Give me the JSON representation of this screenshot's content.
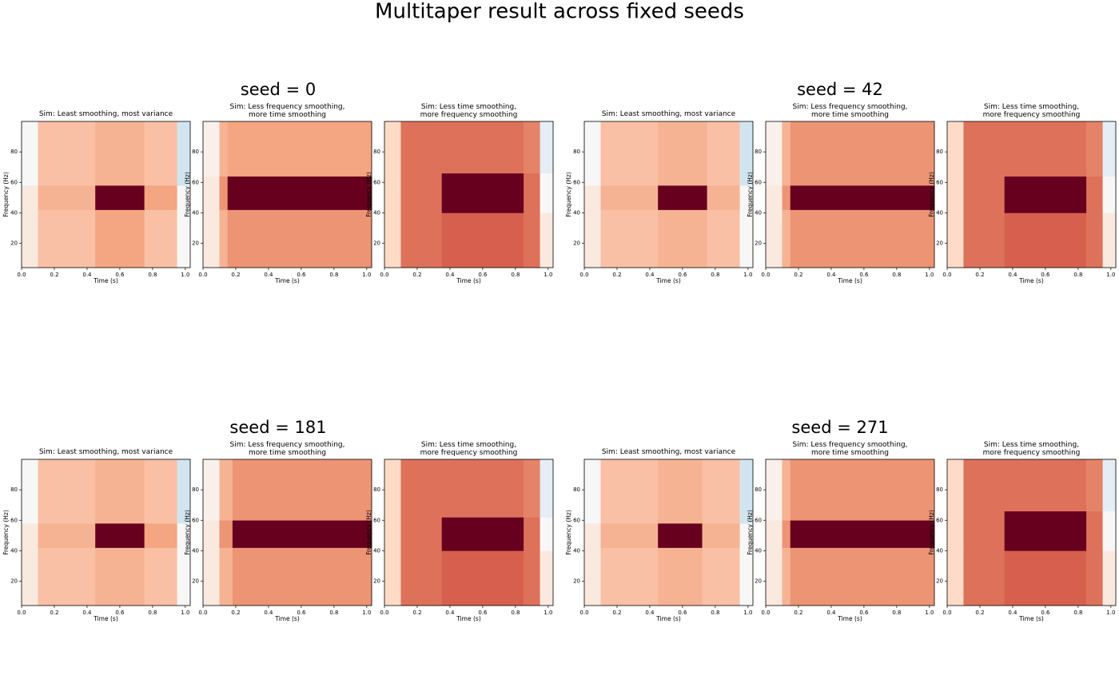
{
  "title": "Multitaper result across fixed seeds",
  "group_titles": [
    "seed = 0",
    "seed = 42",
    "seed = 181",
    "seed = 271"
  ],
  "colormap": [
    "#053061",
    "#2166ac",
    "#4393c3",
    "#92c5de",
    "#d1e5f0",
    "#f7f7f7",
    "#fddbc7",
    "#f4a582",
    "#d6604d",
    "#b2182b",
    "#67001f"
  ],
  "chart_data": [
    {
      "type": "heatmap",
      "title": "Sim: Least smoothing, most variance",
      "xlabel": "Time (s)",
      "ylabel": "Frequency (Hz)",
      "xbins": [
        0,
        0.1,
        0.45,
        0.75,
        0.95,
        1.03
      ],
      "ybins": [
        4,
        42,
        58,
        100
      ],
      "values": [
        [
          0.1,
          0.3,
          0.4,
          0.3,
          0
        ],
        [
          0.1,
          0.35,
          1,
          0.4,
          0
        ],
        [
          0,
          0.3,
          0.35,
          0.3,
          -0.2
        ]
      ],
      "clim": [
        -1,
        1
      ],
      "xlim": [
        0,
        1.03
      ],
      "ylim": [
        4,
        100
      ],
      "xticks": [
        {
          "value": 0,
          "label": "0.0"
        },
        0.2,
        0.4,
        0.6,
        0.8,
        {
          "value": 1,
          "label": "1.0"
        }
      ],
      "yticks": [
        20,
        40,
        60,
        80
      ]
    },
    {
      "type": "heatmap",
      "title": "Sim: Less frequency smoothing,\nmore time smoothing",
      "xlabel": "Time (s)",
      "ylabel": "Frequency (Hz)",
      "xbins": [
        0,
        0.1,
        0.15,
        1.03
      ],
      "ybins": [
        4,
        42,
        64,
        100
      ],
      "values": [
        [
          0.1,
          0.35,
          0.45
        ],
        [
          0.1,
          0.45,
          1
        ],
        [
          0.05,
          0.35,
          0.4
        ]
      ],
      "clim": [
        -1,
        1
      ],
      "xlim": [
        0,
        1.03
      ],
      "ylim": [
        4,
        100
      ],
      "xticks": [
        {
          "value": 0,
          "label": "0.0"
        },
        0.2,
        0.4,
        0.6,
        0.8,
        {
          "value": 1,
          "label": "1.0"
        }
      ],
      "yticks": [
        20,
        40,
        60,
        80
      ]
    },
    {
      "type": "heatmap",
      "title": "Sim: Less time smoothing,\nmore frequency smoothing",
      "xlabel": "Time (s)",
      "ylabel": "Frequency (Hz)",
      "xbins": [
        0,
        0.1,
        0.35,
        0.85,
        0.95,
        1.03
      ],
      "ybins": [
        4,
        40,
        66,
        100
      ],
      "values": [
        [
          0.2,
          0.55,
          0.6,
          0.55,
          0.1
        ],
        [
          0.2,
          0.55,
          1,
          0.55,
          0
        ],
        [
          0.2,
          0.55,
          0.55,
          0.5,
          -0.1
        ]
      ],
      "clim": [
        -1,
        1
      ],
      "xlim": [
        0,
        1.03
      ],
      "ylim": [
        4,
        100
      ],
      "xticks": [
        {
          "value": 0,
          "label": "0.0"
        },
        0.2,
        0.4,
        0.6,
        0.8,
        {
          "value": 1,
          "label": "1.0"
        }
      ],
      "yticks": [
        20,
        40,
        60,
        80
      ]
    },
    {
      "type": "heatmap",
      "title": "Sim: Least smoothing, most variance",
      "xlabel": "Time (s)",
      "ylabel": "Frequency (Hz)",
      "xbins": [
        0,
        0.1,
        0.45,
        0.75,
        0.95,
        1.03
      ],
      "ybins": [
        4,
        42,
        58,
        100
      ],
      "values": [
        [
          0.1,
          0.3,
          0.35,
          0.3,
          0
        ],
        [
          0.1,
          0.35,
          1,
          0.35,
          0
        ],
        [
          0,
          0.3,
          0.35,
          0.3,
          -0.2
        ]
      ],
      "clim": [
        -1,
        1
      ],
      "xlim": [
        0,
        1.03
      ],
      "ylim": [
        4,
        100
      ],
      "xticks": [
        {
          "value": 0,
          "label": "0.0"
        },
        0.2,
        0.4,
        0.6,
        0.8,
        {
          "value": 1,
          "label": "1.0"
        }
      ],
      "yticks": [
        20,
        40,
        60,
        80
      ]
    },
    {
      "type": "heatmap",
      "title": "Sim: Less frequency smoothing,\nmore time smoothing",
      "xlabel": "Time (s)",
      "ylabel": "Frequency (Hz)",
      "xbins": [
        0,
        0.1,
        0.15,
        1.03
      ],
      "ybins": [
        4,
        42,
        58,
        100
      ],
      "values": [
        [
          0.1,
          0.35,
          0.45
        ],
        [
          0.1,
          0.45,
          1
        ],
        [
          0.05,
          0.35,
          0.45
        ]
      ],
      "clim": [
        -1,
        1
      ],
      "xlim": [
        0,
        1.03
      ],
      "ylim": [
        4,
        100
      ],
      "xticks": [
        {
          "value": 0,
          "label": "0.0"
        },
        0.2,
        0.4,
        0.6,
        0.8,
        {
          "value": 1,
          "label": "1.0"
        }
      ],
      "yticks": [
        20,
        40,
        60,
        80
      ]
    },
    {
      "type": "heatmap",
      "title": "Sim: Less time smoothing,\nmore frequency smoothing",
      "xlabel": "Time (s)",
      "ylabel": "Frequency (Hz)",
      "xbins": [
        0,
        0.1,
        0.35,
        0.85,
        0.95,
        1.03
      ],
      "ybins": [
        4,
        40,
        64,
        100
      ],
      "values": [
        [
          0.2,
          0.55,
          0.6,
          0.55,
          0.1
        ],
        [
          0.2,
          0.55,
          1,
          0.55,
          0
        ],
        [
          0.2,
          0.55,
          0.55,
          0.5,
          -0.1
        ]
      ],
      "clim": [
        -1,
        1
      ],
      "xlim": [
        0,
        1.03
      ],
      "ylim": [
        4,
        100
      ],
      "xticks": [
        {
          "value": 0,
          "label": "0.0"
        },
        0.2,
        0.4,
        0.6,
        0.8,
        {
          "value": 1,
          "label": "1.0"
        }
      ],
      "yticks": [
        20,
        40,
        60,
        80
      ]
    },
    {
      "type": "heatmap",
      "title": "Sim: Least smoothing, most variance",
      "xlabel": "Time (s)",
      "ylabel": "Frequency (Hz)",
      "xbins": [
        0,
        0.1,
        0.45,
        0.75,
        0.95,
        1.03
      ],
      "ybins": [
        4,
        42,
        58,
        100
      ],
      "values": [
        [
          0.1,
          0.3,
          0.35,
          0.3,
          0
        ],
        [
          0.1,
          0.35,
          1,
          0.4,
          0
        ],
        [
          0,
          0.3,
          0.35,
          0.3,
          -0.2
        ]
      ],
      "clim": [
        -1,
        1
      ],
      "xlim": [
        0,
        1.03
      ],
      "ylim": [
        4,
        100
      ],
      "xticks": [
        {
          "value": 0,
          "label": "0.0"
        },
        0.2,
        0.4,
        0.6,
        0.8,
        {
          "value": 1,
          "label": "1.0"
        }
      ],
      "yticks": [
        20,
        40,
        60,
        80
      ]
    },
    {
      "type": "heatmap",
      "title": "Sim: Less frequency smoothing,\nmore time smoothing",
      "xlabel": "Time (s)",
      "ylabel": "Frequency (Hz)",
      "xbins": [
        0,
        0.1,
        0.18,
        1.03
      ],
      "ybins": [
        4,
        42,
        60,
        100
      ],
      "values": [
        [
          0.1,
          0.35,
          0.45
        ],
        [
          0.1,
          0.45,
          1
        ],
        [
          0.05,
          0.35,
          0.45
        ]
      ],
      "clim": [
        -1,
        1
      ],
      "xlim": [
        0,
        1.03
      ],
      "ylim": [
        4,
        100
      ],
      "xticks": [
        {
          "value": 0,
          "label": "0.0"
        },
        0.2,
        0.4,
        0.6,
        0.8,
        {
          "value": 1,
          "label": "1.0"
        }
      ],
      "yticks": [
        20,
        40,
        60,
        80
      ]
    },
    {
      "type": "heatmap",
      "title": "Sim: Less time smoothing,\nmore frequency smoothing",
      "xlabel": "Time (s)",
      "ylabel": "Frequency (Hz)",
      "xbins": [
        0,
        0.1,
        0.35,
        0.85,
        0.95,
        1.03
      ],
      "ybins": [
        4,
        40,
        62,
        100
      ],
      "values": [
        [
          0.2,
          0.55,
          0.6,
          0.55,
          0.1
        ],
        [
          0.2,
          0.55,
          1,
          0.55,
          0
        ],
        [
          0.2,
          0.55,
          0.55,
          0.5,
          -0.1
        ]
      ],
      "clim": [
        -1,
        1
      ],
      "xlim": [
        0,
        1.03
      ],
      "ylim": [
        4,
        100
      ],
      "xticks": [
        {
          "value": 0,
          "label": "0.0"
        },
        0.2,
        0.4,
        0.6,
        0.8,
        {
          "value": 1,
          "label": "1.0"
        }
      ],
      "yticks": [
        20,
        40,
        60,
        80
      ]
    },
    {
      "type": "heatmap",
      "title": "Sim: Least smoothing, most variance",
      "xlabel": "Time (s)",
      "ylabel": "Frequency (Hz)",
      "xbins": [
        0,
        0.1,
        0.45,
        0.72,
        0.95,
        1.03
      ],
      "ybins": [
        4,
        42,
        58,
        100
      ],
      "values": [
        [
          0.1,
          0.3,
          0.35,
          0.3,
          0
        ],
        [
          0.1,
          0.35,
          1,
          0.35,
          0
        ],
        [
          0,
          0.3,
          0.35,
          0.3,
          -0.2
        ]
      ],
      "clim": [
        -1,
        1
      ],
      "xlim": [
        0,
        1.03
      ],
      "ylim": [
        4,
        100
      ],
      "xticks": [
        {
          "value": 0,
          "label": "0.0"
        },
        0.2,
        0.4,
        0.6,
        0.8,
        {
          "value": 1,
          "label": "1.0"
        }
      ],
      "yticks": [
        20,
        40,
        60,
        80
      ]
    },
    {
      "type": "heatmap",
      "title": "Sim: Less frequency smoothing,\nmore time smoothing",
      "xlabel": "Time (s)",
      "ylabel": "Frequency (Hz)",
      "xbins": [
        0,
        0.1,
        0.15,
        1.03
      ],
      "ybins": [
        4,
        42,
        60,
        100
      ],
      "values": [
        [
          0.1,
          0.35,
          0.45
        ],
        [
          0.1,
          0.45,
          1
        ],
        [
          0.05,
          0.35,
          0.45
        ]
      ],
      "clim": [
        -1,
        1
      ],
      "xlim": [
        0,
        1.03
      ],
      "ylim": [
        4,
        100
      ],
      "xticks": [
        {
          "value": 0,
          "label": "0.0"
        },
        0.2,
        0.4,
        0.6,
        0.8,
        {
          "value": 1,
          "label": "1.0"
        }
      ],
      "yticks": [
        20,
        40,
        60,
        80
      ]
    },
    {
      "type": "heatmap",
      "title": "Sim: Less time smoothing,\nmore frequency smoothing",
      "xlabel": "Time (s)",
      "ylabel": "Frequency (Hz)",
      "xbins": [
        0,
        0.1,
        0.35,
        0.85,
        0.95,
        1.03
      ],
      "ybins": [
        4,
        40,
        66,
        100
      ],
      "values": [
        [
          0.2,
          0.55,
          0.6,
          0.55,
          0.1
        ],
        [
          0.2,
          0.55,
          1,
          0.55,
          0
        ],
        [
          0.2,
          0.55,
          0.55,
          0.5,
          -0.1
        ]
      ],
      "clim": [
        -1,
        1
      ],
      "xlim": [
        0,
        1.03
      ],
      "ylim": [
        4,
        100
      ],
      "xticks": [
        {
          "value": 0,
          "label": "0.0"
        },
        0.2,
        0.4,
        0.6,
        0.8,
        {
          "value": 1,
          "label": "1.0"
        }
      ],
      "yticks": [
        20,
        40,
        60,
        80
      ]
    }
  ]
}
